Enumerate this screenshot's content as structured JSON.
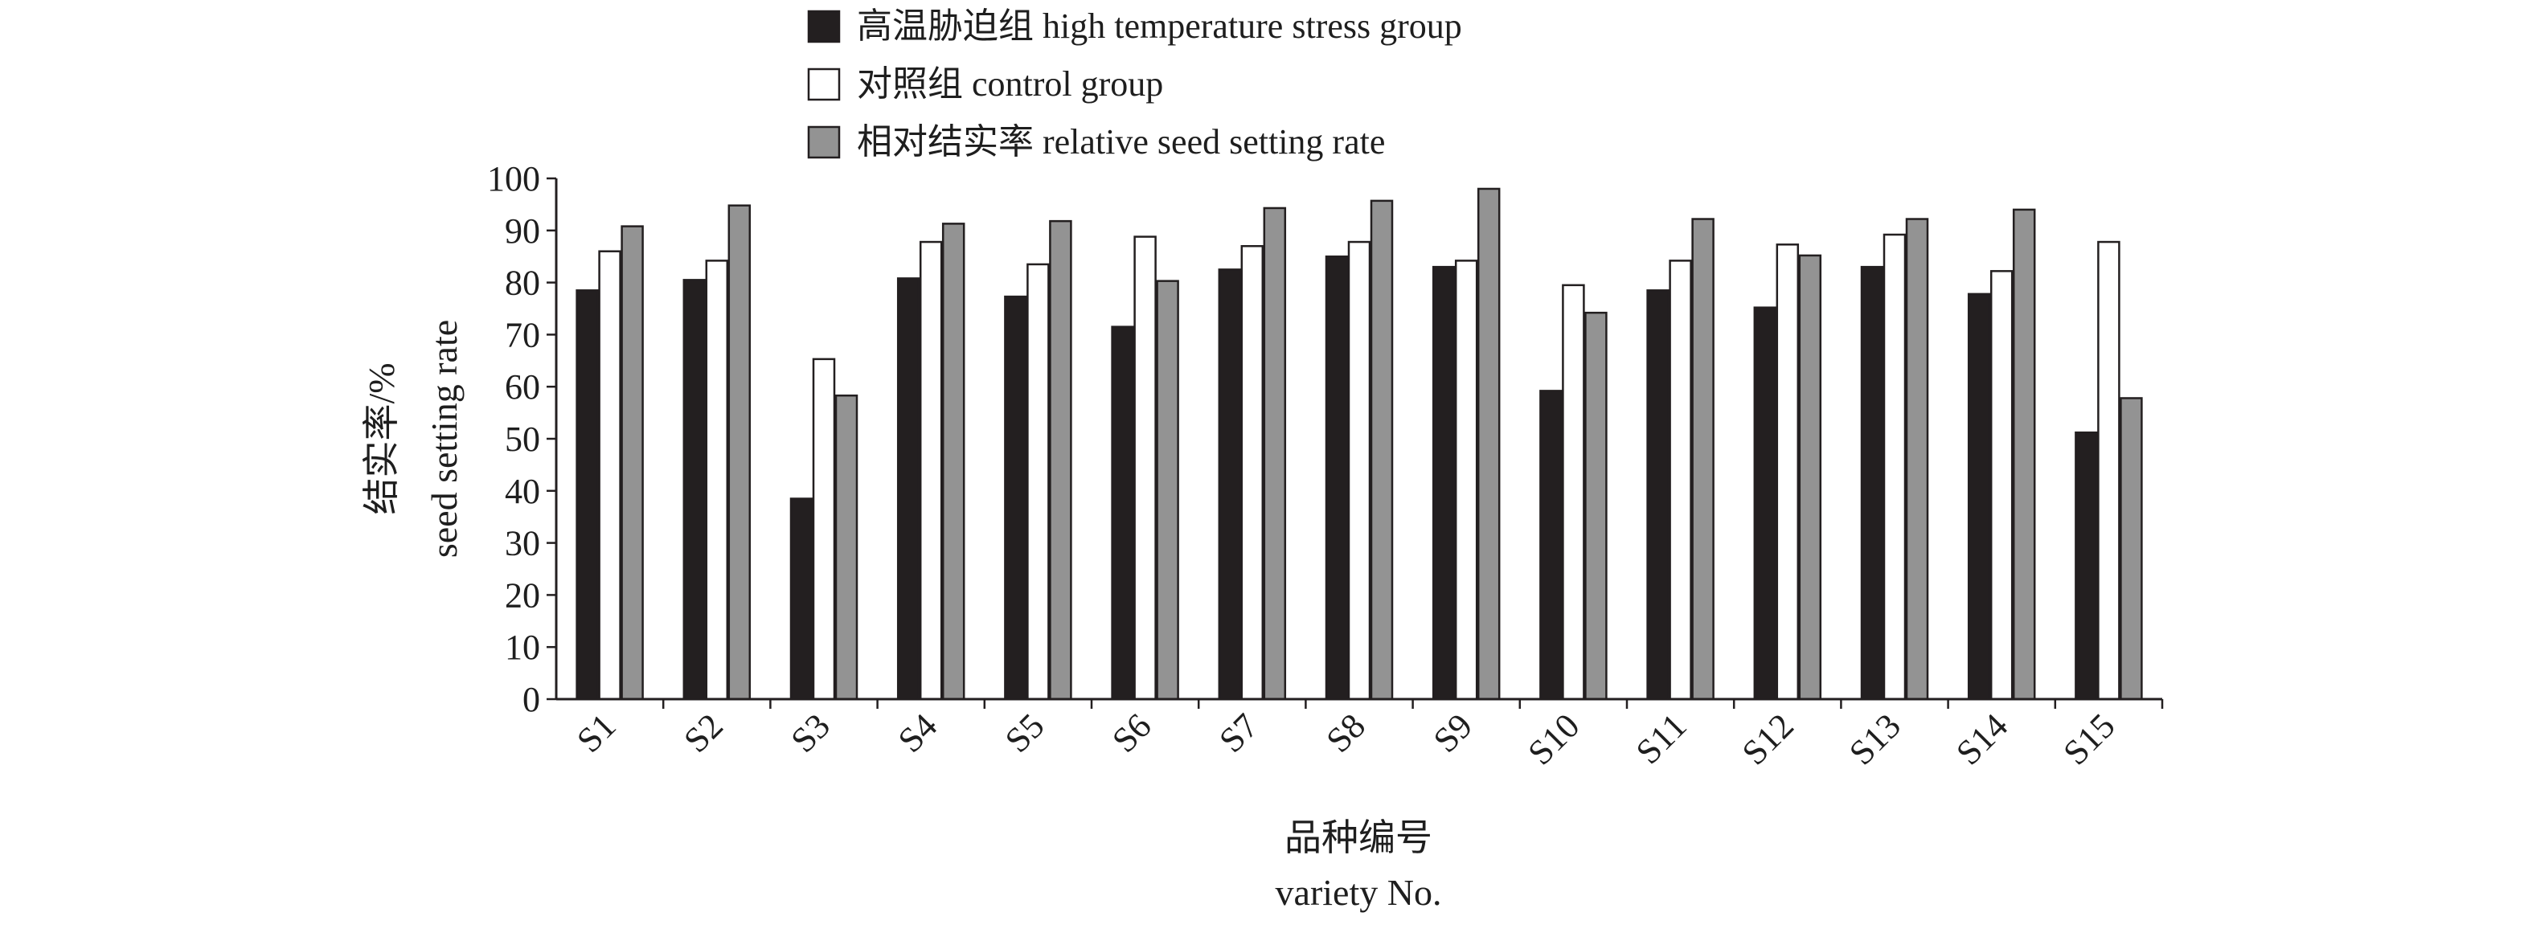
{
  "chart_data": {
    "type": "bar",
    "title": "",
    "xlabel_cn": "品种编号",
    "xlabel": "variety No.",
    "ylabel_cn": "结实率/%",
    "ylabel": "seed setting rate",
    "ylim": [
      0,
      100
    ],
    "yticks": [
      0,
      10,
      20,
      30,
      40,
      50,
      60,
      70,
      80,
      90,
      100
    ],
    "grid": false,
    "legend_position": "top",
    "categories": [
      "S1",
      "S2",
      "S3",
      "S4",
      "S5",
      "S6",
      "S7",
      "S8",
      "S9",
      "S10",
      "S11",
      "S12",
      "S13",
      "S14",
      "S15"
    ],
    "series": [
      {
        "name": "高温胁迫组 high temperature stress group",
        "color": "#231f20",
        "values": [
          78.5,
          80.5,
          38.5,
          80.8,
          77.3,
          71.5,
          82.5,
          85.0,
          83.0,
          59.2,
          78.5,
          75.2,
          83.0,
          77.8,
          51.2
        ]
      },
      {
        "name": "对照组 control group",
        "color": "#ffffff",
        "values": [
          86.0,
          84.2,
          65.3,
          87.8,
          83.5,
          88.8,
          87.0,
          87.8,
          84.2,
          79.5,
          84.2,
          87.3,
          89.2,
          82.2,
          87.8
        ]
      },
      {
        "name": "相对结实率 relative seed setting rate",
        "color": "#939393",
        "values": [
          90.8,
          94.8,
          58.3,
          91.3,
          91.8,
          80.3,
          94.3,
          95.7,
          98.0,
          74.2,
          92.2,
          85.2,
          92.2,
          94.0,
          57.8
        ]
      }
    ]
  }
}
